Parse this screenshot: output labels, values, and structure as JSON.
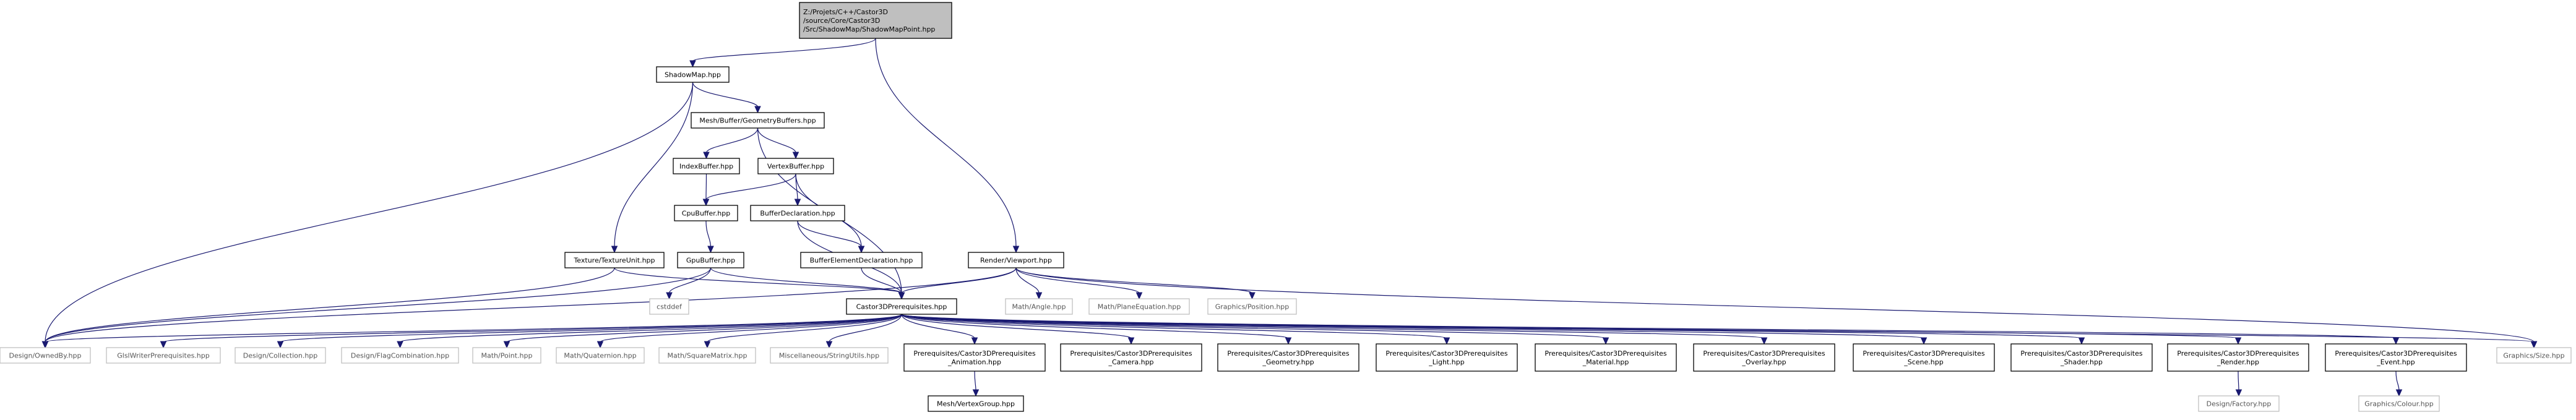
{
  "nodes": [
    {
      "id": "root",
      "lines": [
        "Z:/Projets/C++/Castor3D",
        "/source/Core/Castor3D",
        "/Src/ShadowMap/ShadowMapPoint.hpp"
      ],
      "style": "root"
    },
    {
      "id": "shadowmap",
      "lines": [
        "ShadowMap.hpp"
      ],
      "style": "solid"
    },
    {
      "id": "viewport",
      "lines": [
        "Render/Viewport.hpp"
      ],
      "style": "solid"
    },
    {
      "id": "geombuffers",
      "lines": [
        "Mesh/Buffer/GeometryBuffers.hpp"
      ],
      "style": "solid"
    },
    {
      "id": "indexbuffer",
      "lines": [
        "IndexBuffer.hpp"
      ],
      "style": "solid"
    },
    {
      "id": "vertexbuffer",
      "lines": [
        "VertexBuffer.hpp"
      ],
      "style": "solid"
    },
    {
      "id": "cpubuffer",
      "lines": [
        "CpuBuffer.hpp"
      ],
      "style": "solid"
    },
    {
      "id": "bufferdecl",
      "lines": [
        "BufferDeclaration.hpp"
      ],
      "style": "solid"
    },
    {
      "id": "texunit",
      "lines": [
        "Texture/TextureUnit.hpp"
      ],
      "style": "solid"
    },
    {
      "id": "gpubuffer",
      "lines": [
        "GpuBuffer.hpp"
      ],
      "style": "solid"
    },
    {
      "id": "bufelemdecl",
      "lines": [
        "BufferElementDeclaration.hpp"
      ],
      "style": "solid"
    },
    {
      "id": "cstddef",
      "lines": [
        "cstddef"
      ],
      "style": "gray"
    },
    {
      "id": "angle",
      "lines": [
        "Math/Angle.hpp"
      ],
      "style": "gray"
    },
    {
      "id": "planeeq",
      "lines": [
        "Math/PlaneEquation.hpp"
      ],
      "style": "gray"
    },
    {
      "id": "position",
      "lines": [
        "Graphics/Position.hpp"
      ],
      "style": "gray"
    },
    {
      "id": "c3dprereq",
      "lines": [
        "Castor3DPrerequisites.hpp"
      ],
      "style": "solid"
    },
    {
      "id": "ownedby",
      "lines": [
        "Design/OwnedBy.hpp"
      ],
      "style": "gray"
    },
    {
      "id": "glslwriter",
      "lines": [
        "GlslWriterPrerequisites.hpp"
      ],
      "style": "gray"
    },
    {
      "id": "collection",
      "lines": [
        "Design/Collection.hpp"
      ],
      "style": "gray"
    },
    {
      "id": "flagcomb",
      "lines": [
        "Design/FlagCombination.hpp"
      ],
      "style": "gray"
    },
    {
      "id": "point",
      "lines": [
        "Math/Point.hpp"
      ],
      "style": "gray"
    },
    {
      "id": "quaternion",
      "lines": [
        "Math/Quaternion.hpp"
      ],
      "style": "gray"
    },
    {
      "id": "sqmatrix",
      "lines": [
        "Math/SquareMatrix.hpp"
      ],
      "style": "gray"
    },
    {
      "id": "strutils",
      "lines": [
        "Miscellaneous/StringUtils.hpp"
      ],
      "style": "gray"
    },
    {
      "id": "pr_anim",
      "lines": [
        "Prerequisites/Castor3DPrerequisites",
        "_Animation.hpp"
      ],
      "style": "solid"
    },
    {
      "id": "pr_camera",
      "lines": [
        "Prerequisites/Castor3DPrerequisites",
        "_Camera.hpp"
      ],
      "style": "solid"
    },
    {
      "id": "pr_geom",
      "lines": [
        "Prerequisites/Castor3DPrerequisites",
        "_Geometry.hpp"
      ],
      "style": "solid"
    },
    {
      "id": "pr_light",
      "lines": [
        "Prerequisites/Castor3DPrerequisites",
        "_Light.hpp"
      ],
      "style": "solid"
    },
    {
      "id": "pr_material",
      "lines": [
        "Prerequisites/Castor3DPrerequisites",
        "_Material.hpp"
      ],
      "style": "solid"
    },
    {
      "id": "pr_overlay",
      "lines": [
        "Prerequisites/Castor3DPrerequisites",
        "_Overlay.hpp"
      ],
      "style": "solid"
    },
    {
      "id": "pr_scene",
      "lines": [
        "Prerequisites/Castor3DPrerequisites",
        "_Scene.hpp"
      ],
      "style": "solid"
    },
    {
      "id": "pr_shader",
      "lines": [
        "Prerequisites/Castor3DPrerequisites",
        "_Shader.hpp"
      ],
      "style": "solid"
    },
    {
      "id": "pr_render",
      "lines": [
        "Prerequisites/Castor3DPrerequisites",
        "_Render.hpp"
      ],
      "style": "solid"
    },
    {
      "id": "pr_event",
      "lines": [
        "Prerequisites/Castor3DPrerequisites",
        "_Event.hpp"
      ],
      "style": "solid"
    },
    {
      "id": "size",
      "lines": [
        "Graphics/Size.hpp"
      ],
      "style": "gray"
    },
    {
      "id": "vertexgroup",
      "lines": [
        "Mesh/VertexGroup.hpp"
      ],
      "style": "solid"
    },
    {
      "id": "factory",
      "lines": [
        "Design/Factory.hpp"
      ],
      "style": "gray"
    },
    {
      "id": "colour",
      "lines": [
        "Graphics/Colour.hpp"
      ],
      "style": "gray"
    }
  ],
  "edges": [
    [
      "root",
      "shadowmap"
    ],
    [
      "root",
      "viewport"
    ],
    [
      "shadowmap",
      "geombuffers"
    ],
    [
      "shadowmap",
      "texunit"
    ],
    [
      "shadowmap",
      "ownedby"
    ],
    [
      "geombuffers",
      "indexbuffer"
    ],
    [
      "geombuffers",
      "vertexbuffer"
    ],
    [
      "geombuffers",
      "c3dprereq"
    ],
    [
      "indexbuffer",
      "cpubuffer"
    ],
    [
      "vertexbuffer",
      "cpubuffer"
    ],
    [
      "vertexbuffer",
      "bufferdecl"
    ],
    [
      "vertexbuffer",
      "bufelemdecl"
    ],
    [
      "cpubuffer",
      "gpubuffer"
    ],
    [
      "bufferdecl",
      "bufelemdecl"
    ],
    [
      "bufferdecl",
      "c3dprereq"
    ],
    [
      "bufelemdecl",
      "c3dprereq"
    ],
    [
      "gpubuffer",
      "cstddef"
    ],
    [
      "gpubuffer",
      "c3dprereq"
    ],
    [
      "gpubuffer",
      "ownedby"
    ],
    [
      "texunit",
      "c3dprereq"
    ],
    [
      "texunit",
      "ownedby"
    ],
    [
      "viewport",
      "c3dprereq"
    ],
    [
      "viewport",
      "angle"
    ],
    [
      "viewport",
      "planeeq"
    ],
    [
      "viewport",
      "position"
    ],
    [
      "viewport",
      "ownedby"
    ],
    [
      "viewport",
      "size"
    ],
    [
      "c3dprereq",
      "ownedby"
    ],
    [
      "c3dprereq",
      "glslwriter"
    ],
    [
      "c3dprereq",
      "collection"
    ],
    [
      "c3dprereq",
      "flagcomb"
    ],
    [
      "c3dprereq",
      "point"
    ],
    [
      "c3dprereq",
      "quaternion"
    ],
    [
      "c3dprereq",
      "sqmatrix"
    ],
    [
      "c3dprereq",
      "strutils"
    ],
    [
      "c3dprereq",
      "pr_anim"
    ],
    [
      "c3dprereq",
      "pr_camera"
    ],
    [
      "c3dprereq",
      "pr_geom"
    ],
    [
      "c3dprereq",
      "pr_light"
    ],
    [
      "c3dprereq",
      "pr_material"
    ],
    [
      "c3dprereq",
      "pr_overlay"
    ],
    [
      "c3dprereq",
      "pr_scene"
    ],
    [
      "c3dprereq",
      "pr_shader"
    ],
    [
      "c3dprereq",
      "pr_render"
    ],
    [
      "c3dprereq",
      "pr_event"
    ],
    [
      "c3dprereq",
      "size"
    ],
    [
      "pr_anim",
      "vertexgroup"
    ],
    [
      "pr_render",
      "factory"
    ],
    [
      "pr_event",
      "colour"
    ]
  ]
}
